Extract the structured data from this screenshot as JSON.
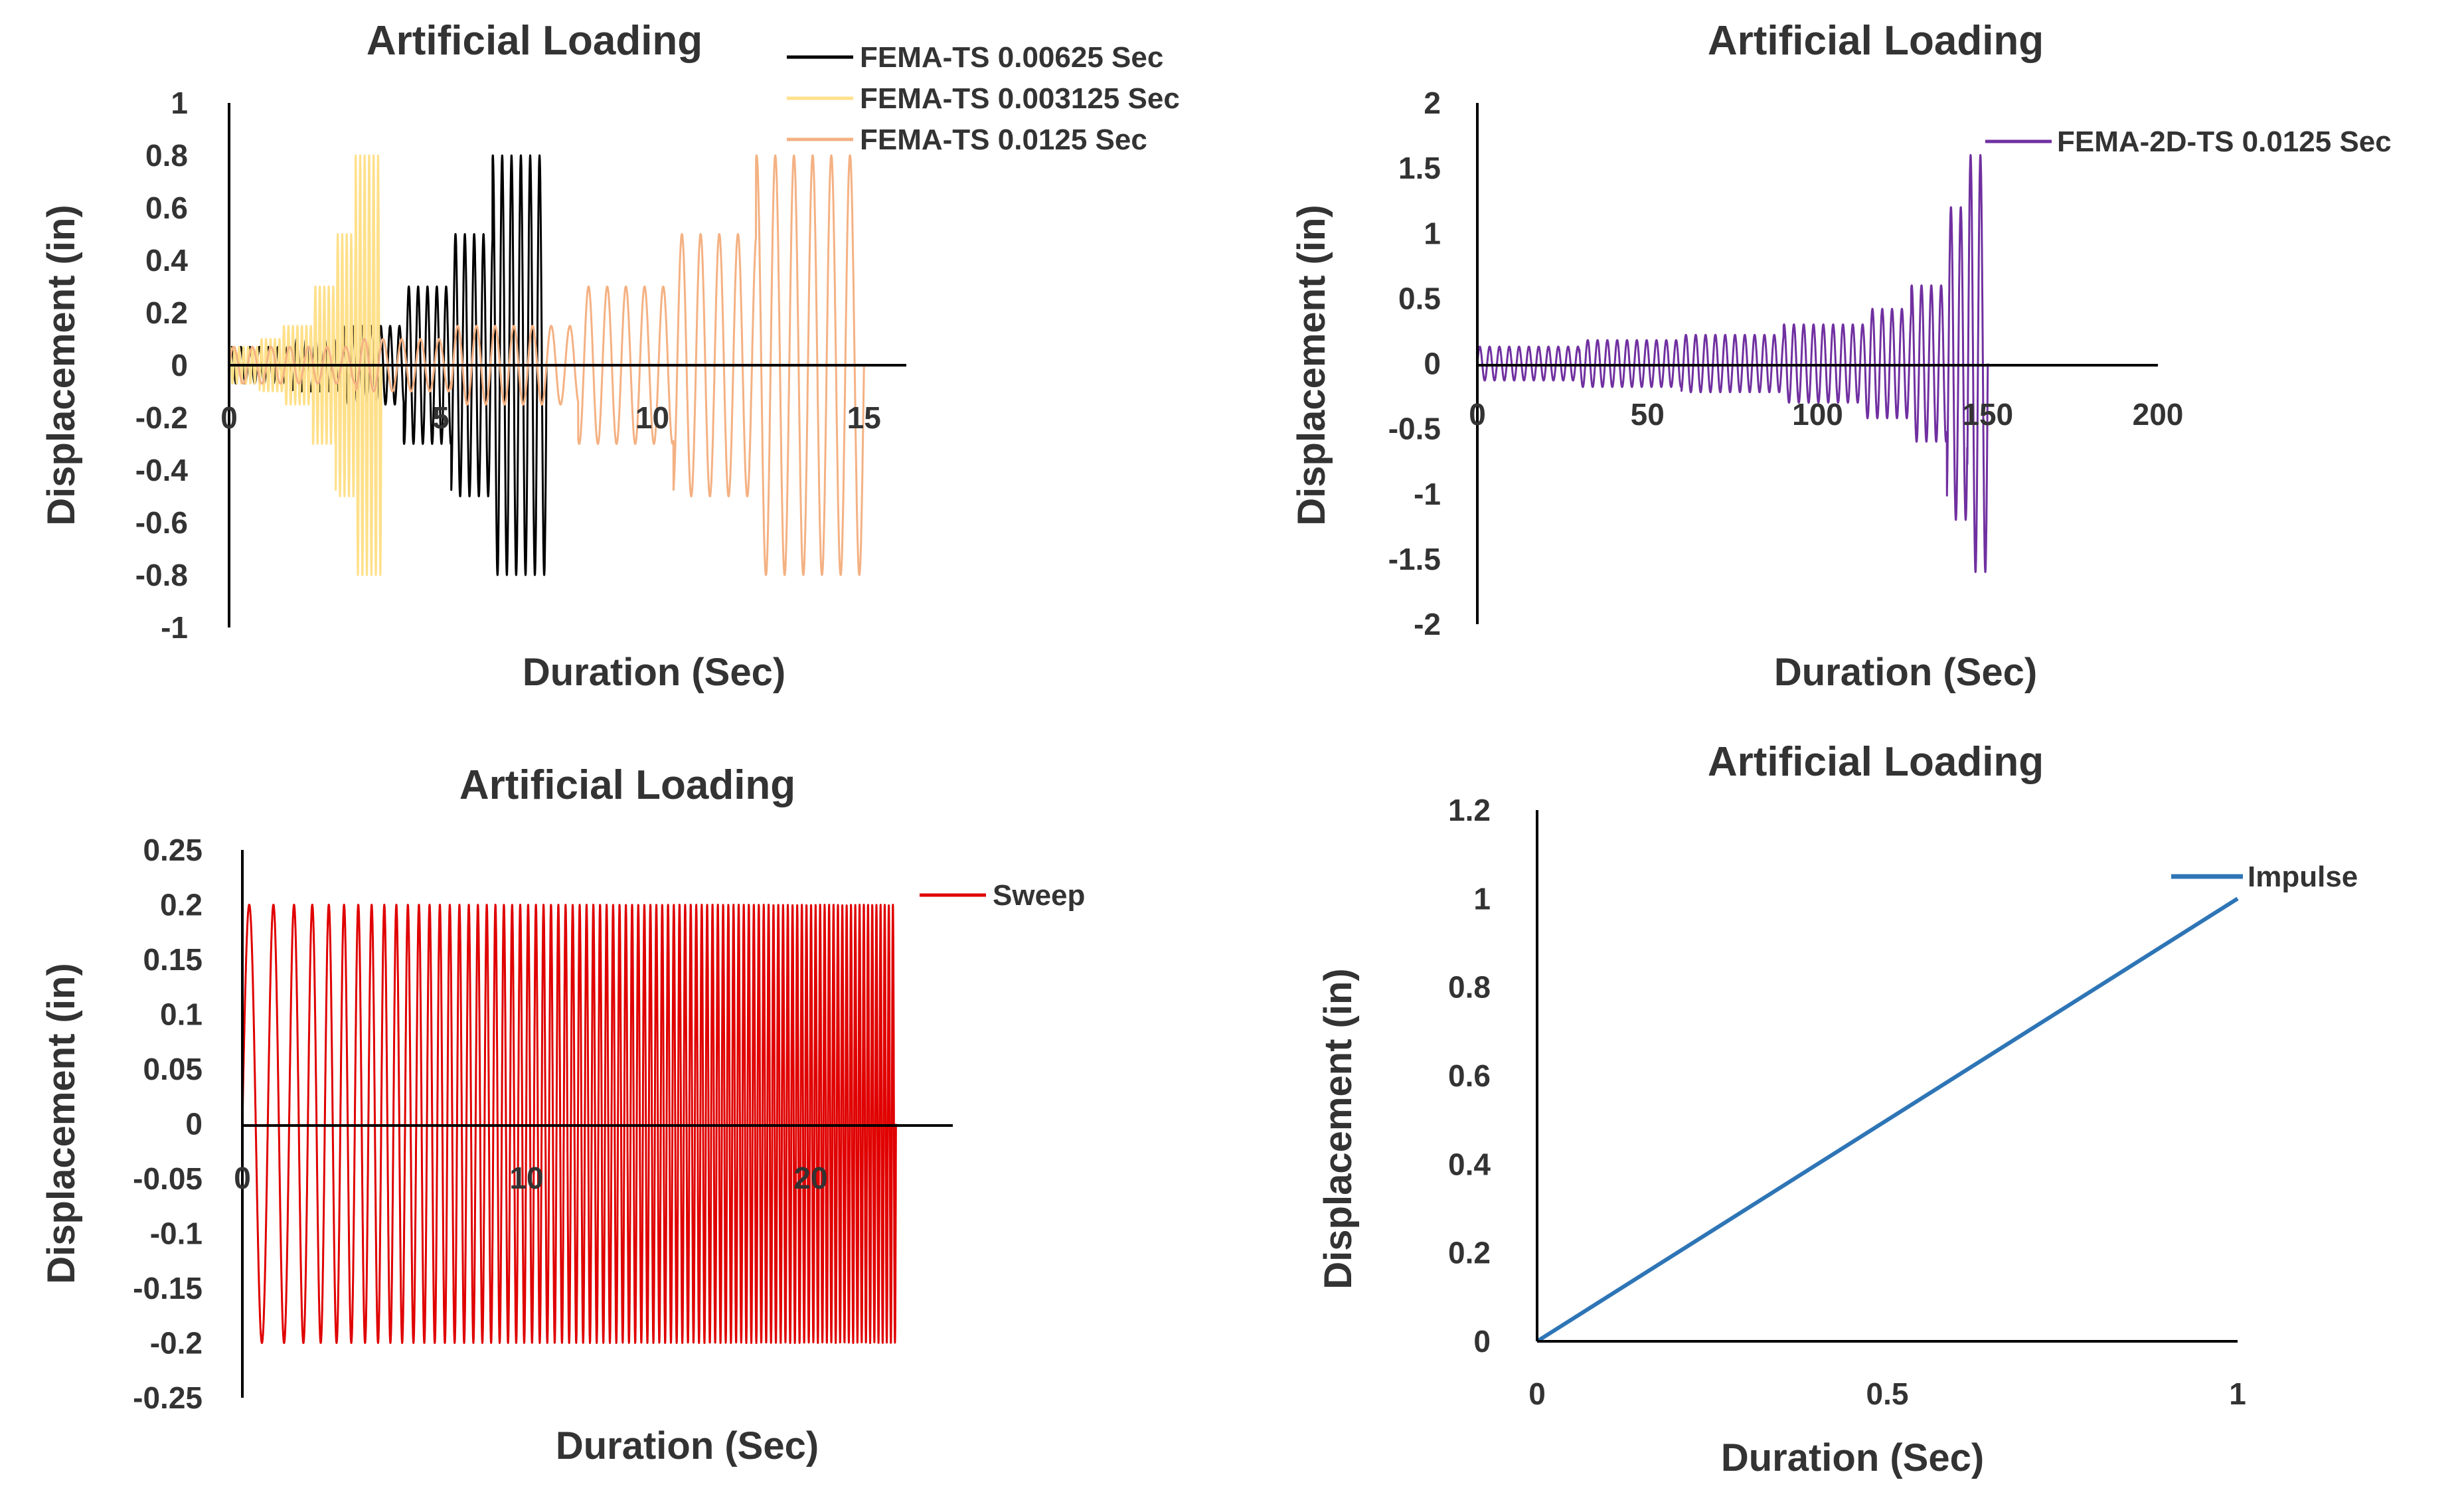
{
  "chart_data": [
    {
      "type": "line",
      "title": "Artificial Loading",
      "xlabel": "Duration (Sec)",
      "ylabel": "Displacement (in)",
      "xlim": [
        0,
        16
      ],
      "ylim": [
        -1,
        1
      ],
      "x_ticks": [
        0,
        5,
        10,
        15
      ],
      "y_ticks": [
        1,
        0.8,
        0.6,
        0.4,
        0.2,
        0,
        -0.2,
        -0.4,
        -0.6,
        -0.8,
        -1
      ],
      "x_tick_labels": [
        "0",
        "5",
        "10",
        "15"
      ],
      "y_tick_labels": [
        "1",
        "0.8",
        "0.6",
        "0.4",
        "0.2",
        "0",
        "-0.2",
        "-0.4",
        "-0.6",
        "-0.8",
        "-1"
      ],
      "legend_position": "top-right",
      "series": [
        {
          "name": "FEMA-TS 0.00625 Sec",
          "color": "#000000",
          "duration": 7.5,
          "cycles": 34,
          "amplitude_steps": [
            [
              0.0,
              0.07
            ],
            [
              0.2,
              0.1
            ],
            [
              0.35,
              0.15
            ],
            [
              0.55,
              0.3
            ],
            [
              0.7,
              0.5
            ],
            [
              0.83,
              0.8
            ]
          ]
        },
        {
          "name": "FEMA-TS 0.003125 Sec",
          "color": "#FFE08A",
          "duration": 3.6,
          "cycles": 34,
          "amplitude_steps": [
            [
              0.0,
              0.07
            ],
            [
              0.2,
              0.1
            ],
            [
              0.35,
              0.15
            ],
            [
              0.55,
              0.3
            ],
            [
              0.7,
              0.5
            ],
            [
              0.83,
              0.8
            ]
          ]
        },
        {
          "name": "FEMA-TS 0.0125 Sec",
          "color": "#F4B183",
          "duration": 15,
          "cycles": 34,
          "amplitude_steps": [
            [
              0.0,
              0.07
            ],
            [
              0.2,
              0.1
            ],
            [
              0.35,
              0.15
            ],
            [
              0.55,
              0.3
            ],
            [
              0.7,
              0.5
            ],
            [
              0.83,
              0.8
            ]
          ]
        }
      ]
    },
    {
      "type": "line",
      "title": "Artificial Loading",
      "xlabel": "Duration (Sec)",
      "ylabel": "Displacement (in)",
      "xlim": [
        0,
        200
      ],
      "ylim": [
        -2,
        2
      ],
      "x_ticks": [
        0,
        50,
        100,
        150,
        200
      ],
      "y_ticks": [
        2,
        1.5,
        1,
        0.5,
        0,
        -0.5,
        -1,
        -1.5,
        -2
      ],
      "x_tick_labels": [
        "0",
        "50",
        "100",
        "150",
        "200"
      ],
      "y_tick_labels": [
        "2",
        "1.5",
        "1",
        "0.5",
        "0",
        "-0.5",
        "-1",
        "-1.5",
        "-2"
      ],
      "legend_position": "top-right",
      "series": [
        {
          "name": "FEMA-2D-TS 0.0125 Sec",
          "color": "#7030A0",
          "duration": 150,
          "cycles": 52,
          "amplitude_steps": [
            [
              0.0,
              0.13
            ],
            [
              0.2,
              0.18
            ],
            [
              0.4,
              0.22
            ],
            [
              0.6,
              0.3
            ],
            [
              0.76,
              0.42
            ],
            [
              0.85,
              0.6
            ],
            [
              0.92,
              1.2
            ],
            [
              0.96,
              1.6
            ]
          ]
        }
      ]
    },
    {
      "type": "line",
      "title": "Artificial Loading",
      "xlabel": "Duration (Sec)",
      "ylabel": "Displacement (in)",
      "xlim": [
        0,
        25
      ],
      "ylim": [
        -0.25,
        0.25
      ],
      "x_ticks": [
        0,
        10,
        20
      ],
      "y_ticks": [
        0.25,
        0.2,
        0.15,
        0.1,
        0.05,
        0,
        -0.05,
        -0.1,
        -0.15,
        -0.2,
        -0.25
      ],
      "x_tick_labels": [
        "0",
        "10",
        "20"
      ],
      "y_tick_labels": [
        "0.25",
        "0.2",
        "0.15",
        "0.1",
        "0.05",
        "0",
        "-0.05",
        "-0.1",
        "-0.15",
        "-0.2",
        "-0.25"
      ],
      "legend_position": "top-right",
      "series": [
        {
          "name": "Sweep",
          "color": "#E00000",
          "duration": 23,
          "amplitude": 0.2,
          "freq_start": 1.0,
          "freq_end": 7.0
        }
      ]
    },
    {
      "type": "line",
      "title": "Artificial Loading",
      "xlabel": "Duration (Sec)",
      "ylabel": "Displacement (in)",
      "xlim": [
        0,
        1
      ],
      "ylim": [
        0,
        1.2
      ],
      "x_ticks": [
        0,
        0.5,
        1
      ],
      "y_ticks": [
        1.2,
        1,
        0.8,
        0.6,
        0.4,
        0.2,
        0
      ],
      "x_tick_labels": [
        "0",
        "0.5",
        "1"
      ],
      "y_tick_labels": [
        "1.2",
        "1",
        "0.8",
        "0.6",
        "0.4",
        "0.2",
        "0"
      ],
      "legend_position": "top-right",
      "series": [
        {
          "name": "Impulse",
          "color": "#2E75B6",
          "x": [
            0,
            1
          ],
          "y": [
            0,
            1
          ]
        }
      ]
    }
  ]
}
